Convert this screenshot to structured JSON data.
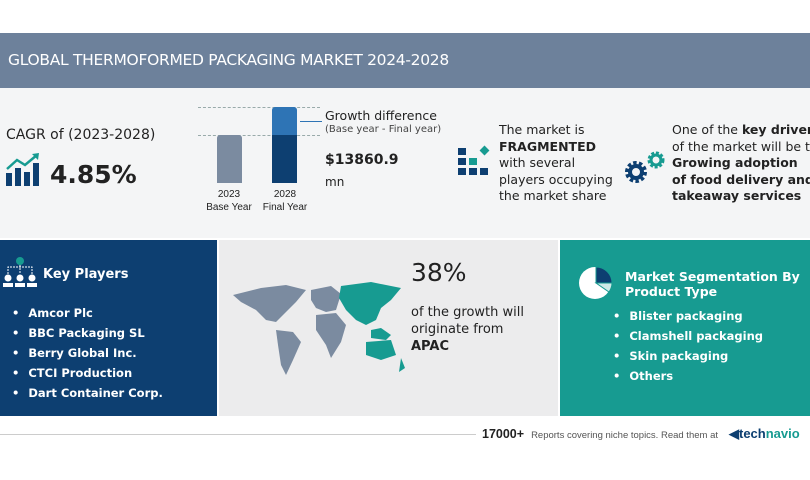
{
  "title": "GLOBAL THERMOFORMED PACKAGING MARKET 2024-2028",
  "cagr": {
    "label": "CAGR of (2023-2028)",
    "value": "4.85%",
    "icon": "growth-chart-icon"
  },
  "growth": {
    "bars": [
      {
        "year": "2023",
        "label": "Base Year"
      },
      {
        "year": "2028",
        "label": "Final Year"
      }
    ],
    "title": "Growth difference",
    "subtitle": "(Base year - Final year)",
    "value": "$13860.9",
    "unit": "mn"
  },
  "market": {
    "line1": "The market is",
    "bold": "FRAGMENTED",
    "line3": "with several",
    "line4": "players occupying",
    "line5": "the market share",
    "icon": "fragmented-blocks-icon"
  },
  "drivers": {
    "line1": "One of the",
    "bold1": "key drivers",
    "line2": "of the market will be the",
    "bold2": "Growing adoption",
    "bold3": "of food delivery and",
    "bold4": "takeaway services",
    "icon": "gears-icon"
  },
  "key_players": {
    "title": "Key Players",
    "items": [
      "Amcor Plc",
      "BBC Packaging SL",
      "Berry Global Inc.",
      "CTCI Production",
      "Dart Container Corp."
    ],
    "icon": "org-chart-icon"
  },
  "region": {
    "percent": "38%",
    "line1": "of the growth will",
    "line2": "originate from",
    "region": "APAC",
    "icon": "world-map-icon"
  },
  "segmentation": {
    "title1": "Market Segmentation By",
    "title2": "Product Type",
    "items": [
      "Blister packaging",
      "Clamshell packaging",
      "Skin packaging",
      "Others"
    ],
    "icon": "pie-chart-icon"
  },
  "footer": {
    "count": "17000+",
    "text": "Reports covering niche topics. Read them at",
    "brand1": "tech",
    "brand2": "navio"
  },
  "colors": {
    "header": "#6d819b",
    "navy": "#0d3f71",
    "teal": "#179b91"
  }
}
